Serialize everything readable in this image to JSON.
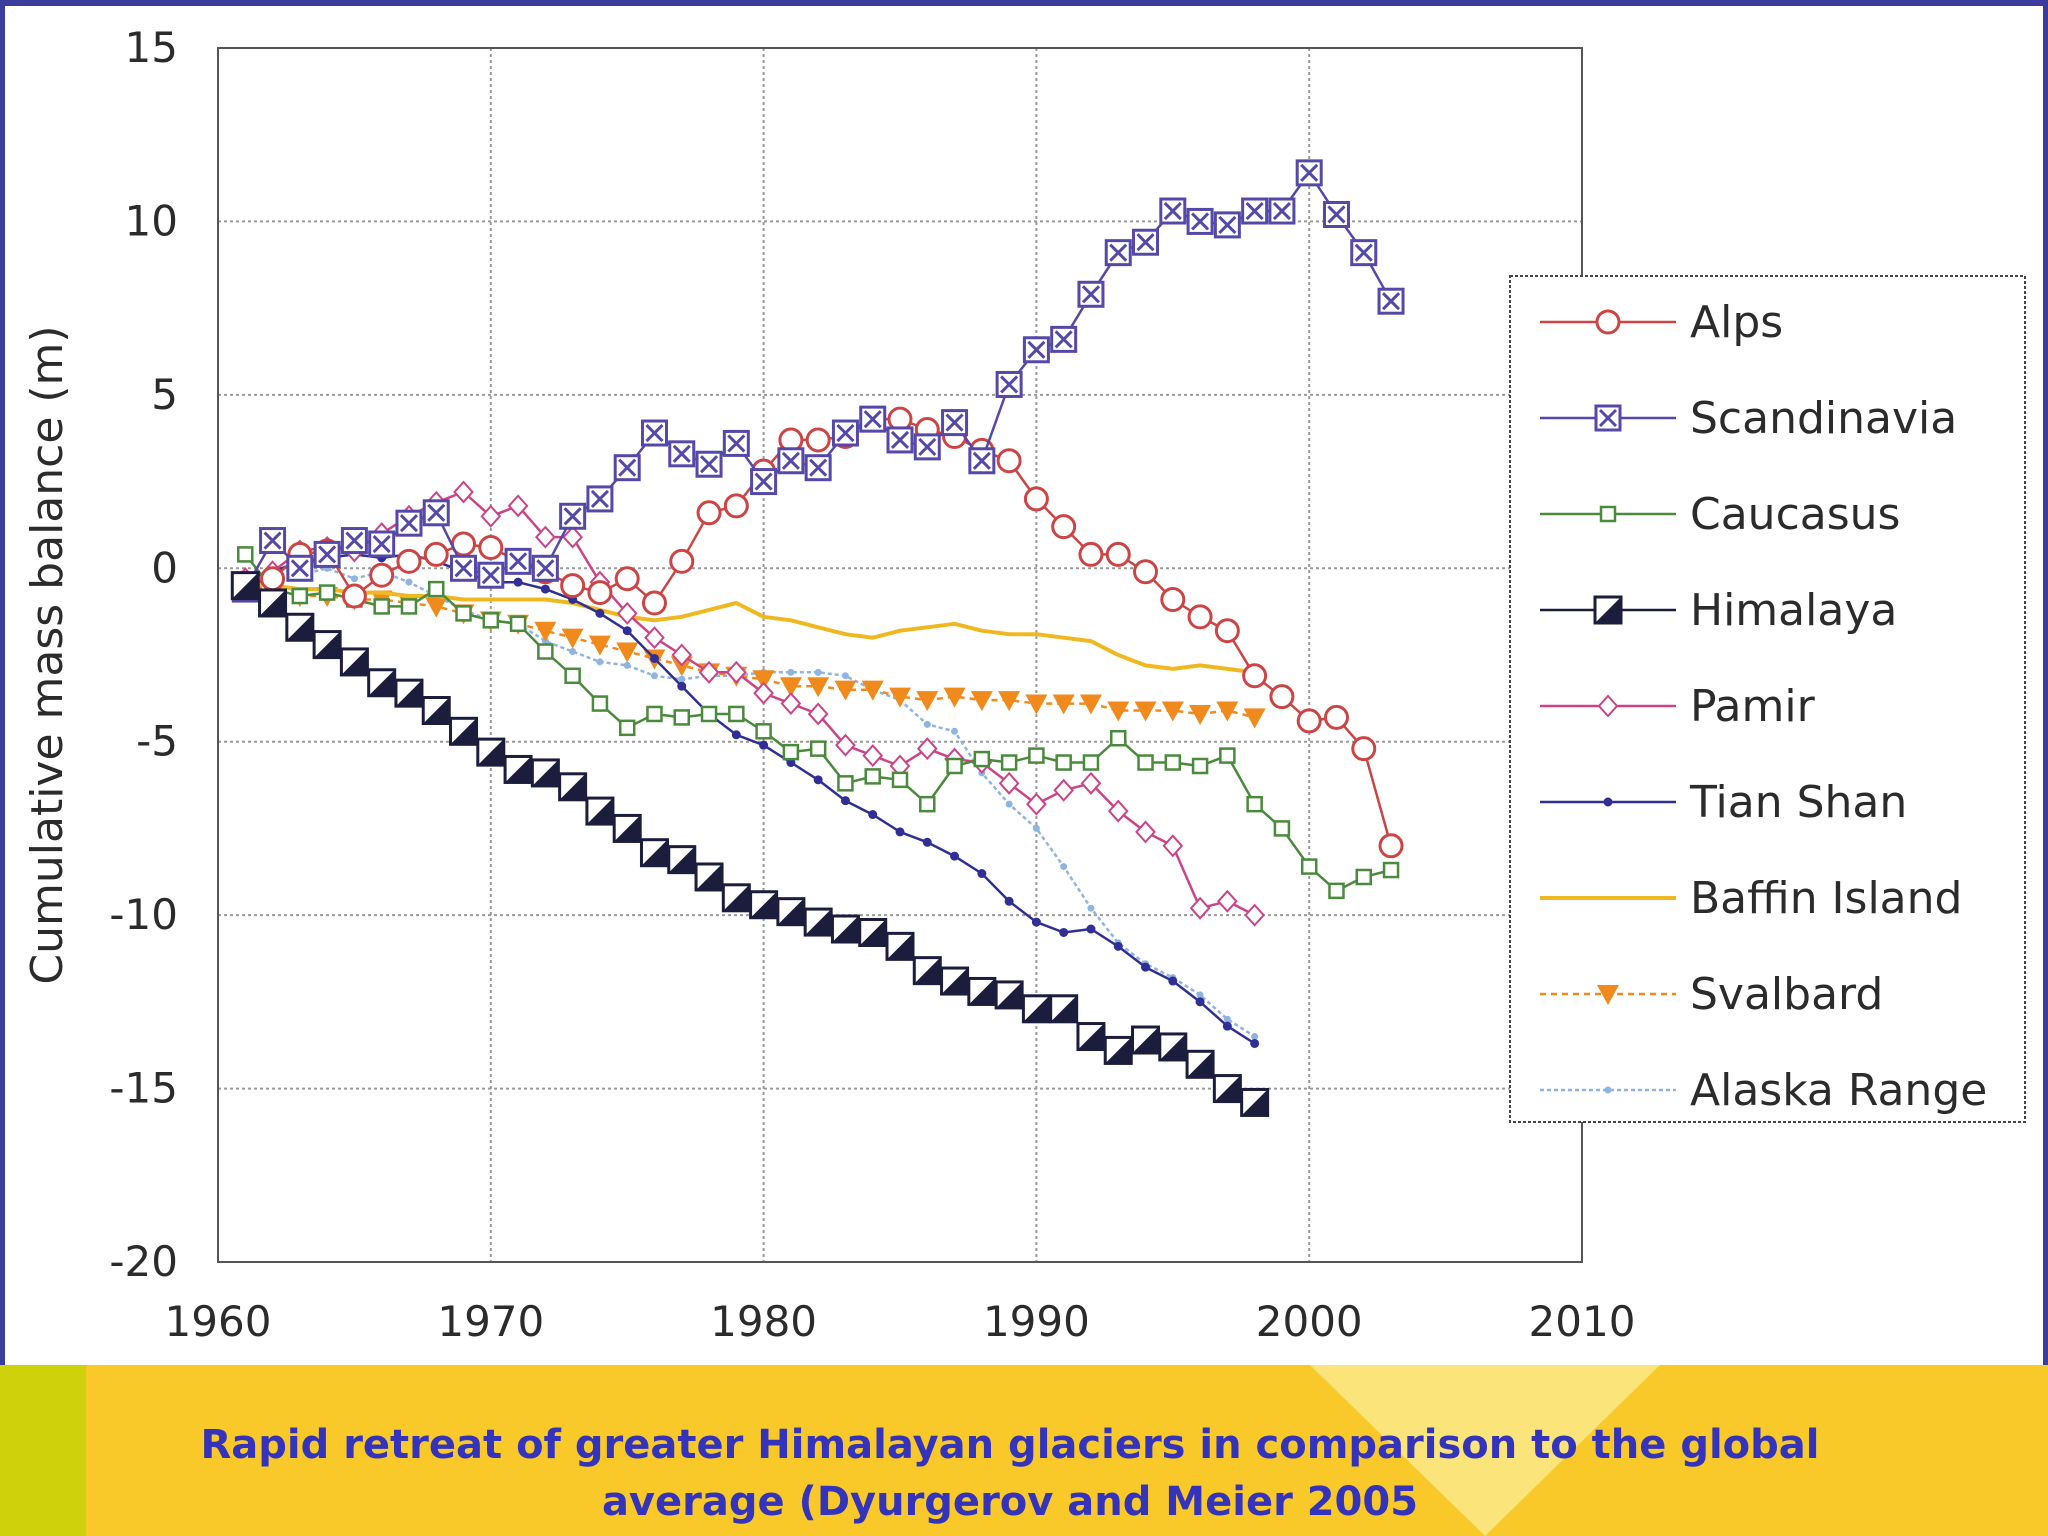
{
  "caption": {
    "line1": "Rapid retreat of greater Himalayan glaciers in comparison to the global",
    "line2": "average (Dyurgerov and Meier 2005"
  },
  "colors": {
    "slide_border": "#3a3d9e",
    "caption_band": "#f9c92a",
    "caption_left_block": "#cfd10b",
    "caption_text": "#3333bb"
  },
  "chart_data": {
    "type": "line",
    "title": "",
    "xlabel": "",
    "ylabel": "Cumulative mass balance (m)",
    "xlim": [
      1960,
      2010
    ],
    "ylim": [
      -20,
      15
    ],
    "xticks": [
      1960,
      1970,
      1980,
      1990,
      2000,
      2010
    ],
    "yticks": [
      15,
      10,
      5,
      0,
      -5,
      -10,
      -15,
      -20
    ],
    "grid": true,
    "legend_position": "right",
    "series": [
      {
        "name": "Alps",
        "color": "#cc4444",
        "marker": "circle",
        "x": [
          1961,
          1962,
          1963,
          1964,
          1965,
          1966,
          1967,
          1968,
          1969,
          1970,
          1971,
          1972,
          1973,
          1974,
          1975,
          1976,
          1977,
          1978,
          1979,
          1980,
          1981,
          1982,
          1983,
          1984,
          1985,
          1986,
          1987,
          1988,
          1989,
          1990,
          1991,
          1992,
          1993,
          1994,
          1995,
          1996,
          1997,
          1998,
          1999,
          2000,
          2001,
          2002,
          2003
        ],
        "y": [
          -0.5,
          -0.3,
          0.4,
          0.5,
          -0.8,
          -0.2,
          0.2,
          0.4,
          0.7,
          0.6,
          0.2,
          -0.1,
          -0.5,
          -0.7,
          -0.3,
          -1.0,
          0.2,
          1.6,
          1.8,
          2.8,
          3.7,
          3.7,
          3.8,
          4.3,
          4.3,
          4.0,
          3.8,
          3.4,
          3.1,
          2.0,
          1.2,
          0.4,
          0.4,
          -0.1,
          -0.9,
          -1.4,
          -1.8,
          -3.1,
          -3.7,
          -4.4,
          -4.3,
          -5.2,
          -8.0
        ]
      },
      {
        "name": "Scandinavia",
        "color": "#5548a8",
        "marker": "xsquare",
        "x": [
          1961,
          1962,
          1963,
          1964,
          1965,
          1966,
          1967,
          1968,
          1969,
          1970,
          1971,
          1972,
          1973,
          1974,
          1975,
          1976,
          1977,
          1978,
          1979,
          1980,
          1981,
          1982,
          1983,
          1984,
          1985,
          1986,
          1987,
          1988,
          1989,
          1990,
          1991,
          1992,
          1993,
          1994,
          1995,
          1996,
          1997,
          1998,
          1999,
          2000,
          2001,
          2002,
          2003
        ],
        "y": [
          -0.6,
          0.8,
          0.0,
          0.4,
          0.8,
          0.7,
          1.3,
          1.6,
          0.0,
          -0.2,
          0.2,
          0.0,
          1.5,
          2.0,
          2.9,
          3.9,
          3.3,
          3.0,
          3.6,
          2.5,
          3.1,
          2.9,
          3.9,
          4.3,
          3.7,
          3.5,
          4.2,
          3.1,
          5.3,
          6.3,
          6.6,
          7.9,
          9.1,
          9.4,
          10.3,
          10.0,
          9.9,
          10.3,
          10.3,
          11.4,
          10.2,
          9.1,
          7.7
        ]
      },
      {
        "name": "Caucasus",
        "color": "#4a8a3c",
        "marker": "square",
        "x": [
          1961,
          1962,
          1963,
          1964,
          1965,
          1966,
          1967,
          1968,
          1969,
          1970,
          1971,
          1972,
          1973,
          1974,
          1975,
          1976,
          1977,
          1978,
          1979,
          1980,
          1981,
          1982,
          1983,
          1984,
          1985,
          1986,
          1987,
          1988,
          1989,
          1990,
          1991,
          1992,
          1993,
          1994,
          1995,
          1996,
          1997,
          1998,
          1999,
          2000,
          2001,
          2002,
          2003
        ],
        "y": [
          0.4,
          -0.6,
          -0.8,
          -0.7,
          -0.9,
          -1.1,
          -1.1,
          -0.6,
          -1.3,
          -1.5,
          -1.6,
          -2.4,
          -3.1,
          -3.9,
          -4.6,
          -4.2,
          -4.3,
          -4.2,
          -4.2,
          -4.7,
          -5.3,
          -5.2,
          -6.2,
          -6.0,
          -6.1,
          -6.8,
          -5.7,
          -5.5,
          -5.6,
          -5.4,
          -5.6,
          -5.6,
          -4.9,
          -5.6,
          -5.6,
          -5.7,
          -5.4,
          -6.8,
          -7.5,
          -8.6,
          -9.3,
          -8.9,
          -8.7
        ]
      },
      {
        "name": "Himalaya",
        "color": "#1c1c3c",
        "marker": "bigsquare",
        "x": [
          1961,
          1962,
          1963,
          1964,
          1965,
          1966,
          1967,
          1968,
          1969,
          1970,
          1971,
          1972,
          1973,
          1974,
          1975,
          1976,
          1977,
          1978,
          1979,
          1980,
          1981,
          1982,
          1983,
          1984,
          1985,
          1986,
          1987,
          1988,
          1989,
          1990,
          1991,
          1992,
          1993,
          1994,
          1995,
          1996,
          1997,
          1998
        ],
        "y": [
          -0.5,
          -1.0,
          -1.7,
          -2.2,
          -2.7,
          -3.3,
          -3.6,
          -4.1,
          -4.7,
          -5.3,
          -5.8,
          -5.9,
          -6.3,
          -7.0,
          -7.5,
          -8.2,
          -8.4,
          -8.9,
          -9.5,
          -9.7,
          -9.9,
          -10.2,
          -10.4,
          -10.5,
          -10.9,
          -11.6,
          -11.9,
          -12.2,
          -12.3,
          -12.7,
          -12.7,
          -13.5,
          -13.9,
          -13.6,
          -13.8,
          -14.3,
          -15.0,
          -15.4
        ]
      },
      {
        "name": "Pamir",
        "color": "#cc4488",
        "marker": "diamond",
        "x": [
          1961,
          1962,
          1963,
          1964,
          1965,
          1966,
          1967,
          1968,
          1969,
          1970,
          1971,
          1972,
          1973,
          1974,
          1975,
          1976,
          1977,
          1978,
          1979,
          1980,
          1981,
          1982,
          1983,
          1984,
          1985,
          1986,
          1987,
          1988,
          1989,
          1990,
          1991,
          1992,
          1993,
          1994,
          1995,
          1996,
          1997,
          1998
        ],
        "y": [
          -0.3,
          -0.1,
          0.5,
          0.6,
          0.5,
          1.0,
          1.5,
          1.9,
          2.2,
          1.5,
          1.8,
          0.9,
          0.9,
          -0.4,
          -1.3,
          -2.0,
          -2.5,
          -3.0,
          -3.0,
          -3.6,
          -3.9,
          -4.2,
          -5.1,
          -5.4,
          -5.7,
          -5.2,
          -5.5,
          -5.6,
          -6.2,
          -6.8,
          -6.4,
          -6.2,
          -7.0,
          -7.6,
          -8.0,
          -9.8,
          -9.6,
          -10.0
        ]
      },
      {
        "name": "Tian Shan",
        "color": "#2f2f95",
        "marker": "dot",
        "x": [
          1961,
          1962,
          1963,
          1964,
          1965,
          1966,
          1967,
          1968,
          1969,
          1970,
          1971,
          1972,
          1973,
          1974,
          1975,
          1976,
          1977,
          1978,
          1979,
          1980,
          1981,
          1982,
          1983,
          1984,
          1985,
          1986,
          1987,
          1988,
          1989,
          1990,
          1991,
          1992,
          1993,
          1994,
          1995,
          1996,
          1997,
          1998
        ],
        "y": [
          -0.3,
          -0.1,
          0.2,
          0.3,
          0.4,
          0.3,
          0.4,
          0.2,
          -0.1,
          -0.4,
          -0.4,
          -0.6,
          -0.9,
          -1.3,
          -1.8,
          -2.6,
          -3.4,
          -4.2,
          -4.8,
          -5.1,
          -5.6,
          -6.1,
          -6.7,
          -7.1,
          -7.6,
          -7.9,
          -8.3,
          -8.8,
          -9.6,
          -10.2,
          -10.5,
          -10.4,
          -10.9,
          -11.5,
          -11.9,
          -12.5,
          -13.2,
          -13.7
        ]
      },
      {
        "name": "Baffin Island",
        "color": "#f0b820",
        "marker": "none",
        "x": [
          1961,
          1962,
          1963,
          1964,
          1965,
          1966,
          1967,
          1968,
          1969,
          1970,
          1971,
          1972,
          1973,
          1974,
          1975,
          1976,
          1977,
          1978,
          1979,
          1980,
          1981,
          1982,
          1983,
          1984,
          1985,
          1986,
          1987,
          1988,
          1989,
          1990,
          1991,
          1992,
          1993,
          1994,
          1995,
          1996,
          1997,
          1998
        ],
        "y": [
          -0.4,
          -0.5,
          -0.6,
          -0.6,
          -0.7,
          -0.7,
          -0.8,
          -0.8,
          -0.9,
          -0.9,
          -0.9,
          -0.9,
          -1.0,
          -1.2,
          -1.4,
          -1.5,
          -1.4,
          -1.2,
          -1.0,
          -1.4,
          -1.5,
          -1.7,
          -1.9,
          -2.0,
          -1.8,
          -1.7,
          -1.6,
          -1.8,
          -1.9,
          -1.9,
          -2.0,
          -2.1,
          -2.5,
          -2.8,
          -2.9,
          -2.8,
          -2.9,
          -3.0
        ]
      },
      {
        "name": "Svalbard",
        "color": "#f08a1c",
        "marker": "triangle",
        "x": [
          1961,
          1962,
          1963,
          1964,
          1965,
          1966,
          1967,
          1968,
          1969,
          1970,
          1971,
          1972,
          1973,
          1974,
          1975,
          1976,
          1977,
          1978,
          1979,
          1980,
          1981,
          1982,
          1983,
          1984,
          1985,
          1986,
          1987,
          1988,
          1989,
          1990,
          1991,
          1992,
          1993,
          1994,
          1995,
          1996,
          1997,
          1998
        ],
        "y": [
          -0.5,
          -0.6,
          -0.8,
          -0.8,
          -0.9,
          -0.9,
          -1.0,
          -1.1,
          -1.3,
          -1.5,
          -1.6,
          -1.8,
          -2.0,
          -2.2,
          -2.4,
          -2.6,
          -2.8,
          -3.0,
          -3.1,
          -3.2,
          -3.4,
          -3.4,
          -3.5,
          -3.5,
          -3.7,
          -3.8,
          -3.7,
          -3.8,
          -3.8,
          -3.9,
          -3.9,
          -3.9,
          -4.1,
          -4.1,
          -4.1,
          -4.2,
          -4.1,
          -4.3
        ]
      },
      {
        "name": "Alaska Range",
        "color": "#8eb4e0",
        "marker": "smalldot",
        "x": [
          1961,
          1962,
          1963,
          1964,
          1965,
          1966,
          1967,
          1968,
          1969,
          1970,
          1971,
          1972,
          1973,
          1974,
          1975,
          1976,
          1977,
          1978,
          1979,
          1980,
          1981,
          1982,
          1983,
          1984,
          1985,
          1986,
          1987,
          1988,
          1989,
          1990,
          1991,
          1992,
          1993,
          1994,
          1995,
          1996,
          1997,
          1998
        ],
        "y": [
          -0.4,
          -0.3,
          -0.2,
          0.0,
          -0.3,
          -0.1,
          -0.4,
          -0.8,
          -1.2,
          -1.5,
          -1.6,
          -2.1,
          -2.4,
          -2.7,
          -2.8,
          -3.1,
          -3.2,
          -3.1,
          -3.1,
          -3.0,
          -3.0,
          -3.0,
          -3.1,
          -3.5,
          -3.8,
          -4.5,
          -4.7,
          -5.9,
          -6.8,
          -7.5,
          -8.6,
          -9.8,
          -10.8,
          -11.4,
          -11.8,
          -12.3,
          -13.0,
          -13.5
        ]
      }
    ]
  }
}
